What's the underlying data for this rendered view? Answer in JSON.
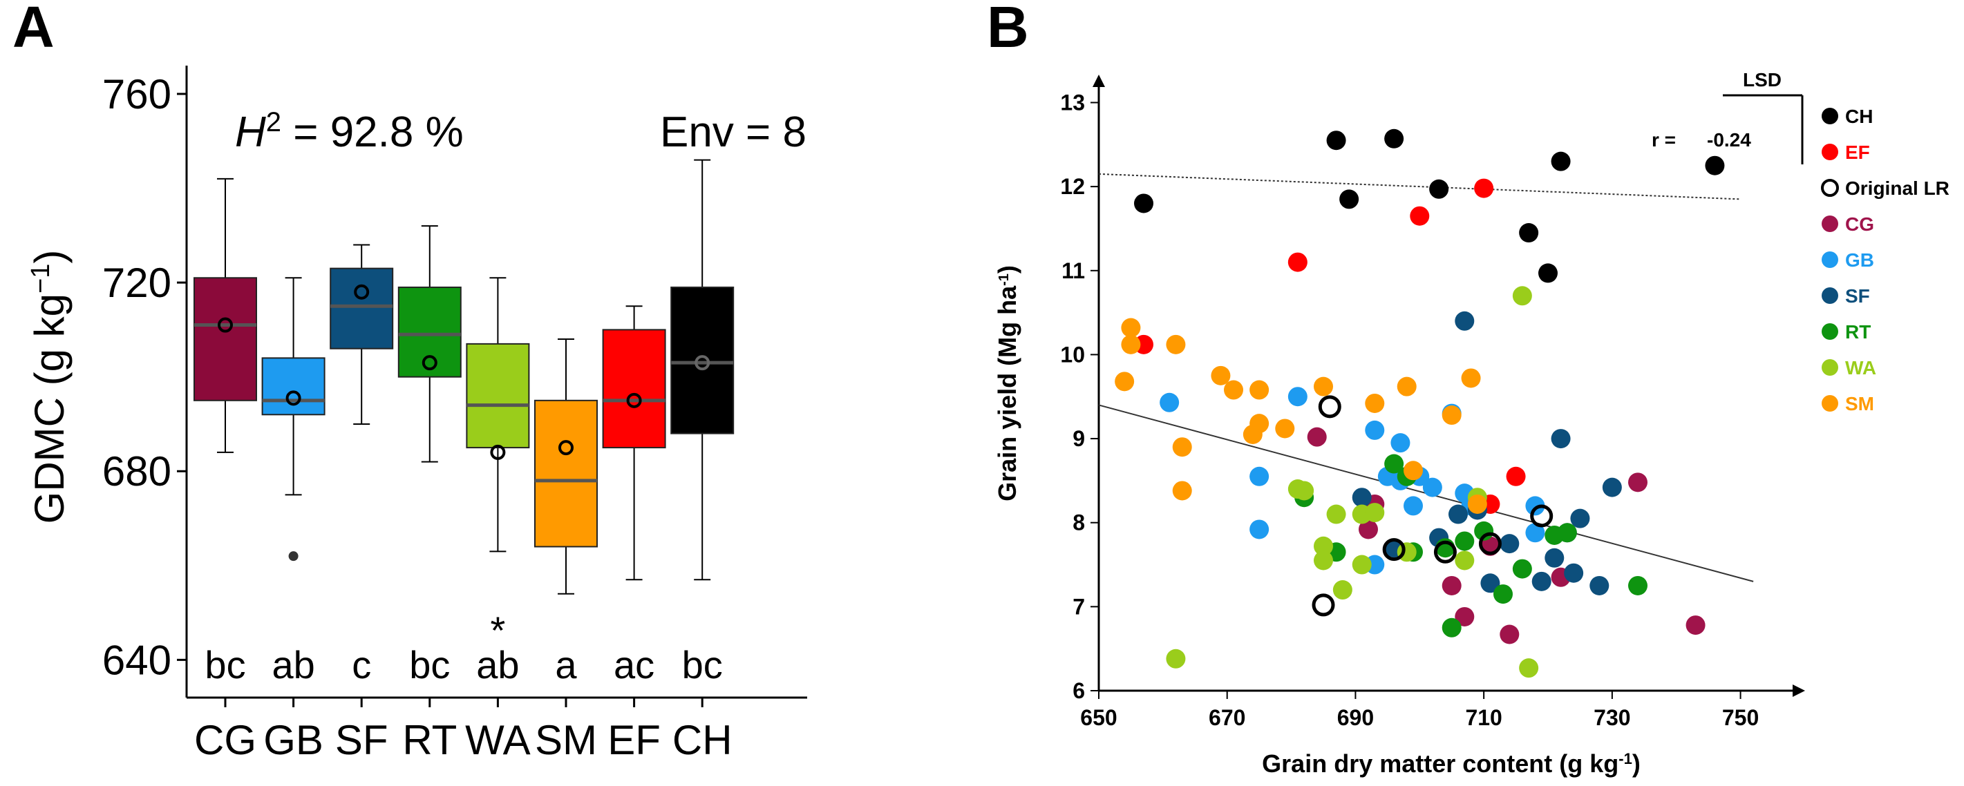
{
  "panels": {
    "a": "A",
    "b": "B"
  },
  "chart_data": [
    {
      "type": "box",
      "panel": "A",
      "ylabel_main": "GDMC (g kg",
      "ylabel_sup": "−1",
      "ylabel_end": ")",
      "ylim": [
        632,
        766
      ],
      "yticks": [
        640,
        680,
        720,
        760
      ],
      "annotation_h2": {
        "symbol": "H",
        "sup": "2",
        "text": " = 92.8 %"
      },
      "annotation_env": "Env = 8",
      "categories": [
        "CG",
        "GB",
        "SF",
        "RT",
        "WA",
        "SM",
        "EF",
        "CH"
      ],
      "letters": [
        "bc",
        "ab",
        "c",
        "bc",
        "ab",
        "a",
        "ac",
        "bc"
      ],
      "star": {
        "category": "WA",
        "text": "*"
      },
      "colors": [
        "#8B0A3A",
        "#1E9BF0",
        "#0D4F7C",
        "#0E9410",
        "#9ACD1B",
        "#FF9A00",
        "#FF0000",
        "#000000"
      ],
      "median_color": "#555555",
      "boxes": [
        {
          "whisker_low": 684,
          "q1": 695,
          "median": 711,
          "q3": 721,
          "whisker_high": 742,
          "mean": 711,
          "outliers": []
        },
        {
          "whisker_low": 675,
          "q1": 692,
          "median": 695,
          "q3": 704,
          "whisker_high": 721,
          "mean": 695.5,
          "outliers": [
            662
          ]
        },
        {
          "whisker_low": 690,
          "q1": 706,
          "median": 715,
          "q3": 723,
          "whisker_high": 728,
          "mean": 718,
          "outliers": []
        },
        {
          "whisker_low": 682,
          "q1": 700,
          "median": 709,
          "q3": 719,
          "whisker_high": 732,
          "mean": 703,
          "outliers": []
        },
        {
          "whisker_low": 663,
          "q1": 685,
          "median": 694,
          "q3": 707,
          "whisker_high": 721,
          "mean": 684,
          "outliers": []
        },
        {
          "whisker_low": 654,
          "q1": 664,
          "median": 678,
          "q3": 695,
          "whisker_high": 708,
          "mean": 685,
          "outliers": []
        },
        {
          "whisker_low": 657,
          "q1": 685,
          "median": 695,
          "q3": 710,
          "whisker_high": 715,
          "mean": 695,
          "outliers": []
        },
        {
          "whisker_low": 657,
          "q1": 688,
          "median": 703,
          "q3": 719,
          "whisker_high": 746,
          "mean": 703,
          "outliers": []
        }
      ]
    },
    {
      "type": "scatter",
      "panel": "B",
      "xlabel_main": "Grain dry matter content (g kg",
      "xlabel_sup": "-1",
      "xlabel_end": ")",
      "ylabel_main": "Grain yield (Mg ha",
      "ylabel_sup": "-1",
      "ylabel_end": ")",
      "xlim": [
        650,
        755
      ],
      "ylim": [
        6,
        13.3
      ],
      "xticks": [
        650,
        670,
        690,
        710,
        730,
        750
      ],
      "yticks": [
        6,
        7,
        8,
        9,
        10,
        11,
        12,
        13
      ],
      "lsd_label": "LSD",
      "r_label": "r =",
      "r_value": "-0.24",
      "legend": [
        {
          "name": "CH",
          "color": "#000000",
          "style": "filled"
        },
        {
          "name": "EF",
          "color": "#FF0000",
          "style": "filled"
        },
        {
          "name": "Original LR",
          "color": "#000000",
          "style": "ring"
        },
        {
          "name": "CG",
          "color": "#A0144B",
          "style": "filled"
        },
        {
          "name": "GB",
          "color": "#1E9BF0",
          "style": "filled"
        },
        {
          "name": "SF",
          "color": "#0D4F7C",
          "style": "filled"
        },
        {
          "name": "RT",
          "color": "#0E9410",
          "style": "filled"
        },
        {
          "name": "WA",
          "color": "#9ACD1B",
          "style": "filled"
        },
        {
          "name": "SM",
          "color": "#FF9A00",
          "style": "filled"
        }
      ],
      "lines": [
        {
          "name": "dotted",
          "x": [
            650,
            750
          ],
          "y": [
            12.15,
            11.85
          ],
          "style": "dotted"
        },
        {
          "name": "solid",
          "x": [
            650,
            752
          ],
          "y": [
            9.4,
            7.3
          ],
          "style": "solid"
        }
      ],
      "series": [
        {
          "name": "CH",
          "color": "#000000",
          "points": [
            [
              657,
              11.8
            ],
            [
              687,
              12.55
            ],
            [
              689,
              11.85
            ],
            [
              696,
              12.57
            ],
            [
              703,
              11.97
            ],
            [
              717,
              11.45
            ],
            [
              720,
              10.97
            ],
            [
              722,
              12.3
            ],
            [
              746,
              12.25
            ]
          ]
        },
        {
          "name": "EF",
          "color": "#FF0000",
          "points": [
            [
              657,
              10.12
            ],
            [
              681,
              11.1
            ],
            [
              700,
              11.65
            ],
            [
              710,
              11.98
            ],
            [
              711,
              8.22
            ],
            [
              715,
              8.55
            ]
          ]
        },
        {
          "name": "CG",
          "color": "#A0144B",
          "points": [
            [
              684,
              9.02
            ],
            [
              692,
              7.92
            ],
            [
              693,
              8.22
            ],
            [
              705,
              7.25
            ],
            [
              707,
              6.88
            ],
            [
              711,
              7.72
            ],
            [
              714,
              6.67
            ],
            [
              722,
              7.35
            ],
            [
              734,
              8.48
            ],
            [
              743,
              6.78
            ]
          ]
        },
        {
          "name": "GB",
          "color": "#1E9BF0",
          "points": [
            [
              661,
              9.43
            ],
            [
              675,
              8.55
            ],
            [
              675,
              7.92
            ],
            [
              681,
              9.5
            ],
            [
              693,
              7.5
            ],
            [
              693,
              9.1
            ],
            [
              695,
              8.55
            ],
            [
              697,
              8.95
            ],
            [
              697,
              8.5
            ],
            [
              699,
              8.2
            ],
            [
              700,
              8.55
            ],
            [
              702,
              8.42
            ],
            [
              705,
              9.3
            ],
            [
              707,
              8.35
            ],
            [
              708,
              8.2
            ],
            [
              718,
              7.88
            ],
            [
              718,
              8.2
            ]
          ]
        },
        {
          "name": "SF",
          "color": "#0D4F7C",
          "points": [
            [
              691,
              8.3
            ],
            [
              696,
              7.7
            ],
            [
              703,
              7.82
            ],
            [
              706,
              8.1
            ],
            [
              707,
              10.4
            ],
            [
              709,
              8.15
            ],
            [
              711,
              7.28
            ],
            [
              714,
              7.75
            ],
            [
              719,
              7.3
            ],
            [
              721,
              7.58
            ],
            [
              722,
              9.0
            ],
            [
              723,
              7.88
            ],
            [
              724,
              7.4
            ],
            [
              725,
              8.05
            ],
            [
              728,
              7.25
            ],
            [
              730,
              8.42
            ]
          ]
        },
        {
          "name": "RT",
          "color": "#0E9410",
          "points": [
            [
              682,
              8.3
            ],
            [
              687,
              7.65
            ],
            [
              696,
              8.7
            ],
            [
              698,
              8.55
            ],
            [
              699,
              7.65
            ],
            [
              704,
              7.7
            ],
            [
              705,
              6.75
            ],
            [
              707,
              7.78
            ],
            [
              710,
              7.9
            ],
            [
              713,
              7.15
            ],
            [
              716,
              7.45
            ],
            [
              721,
              7.85
            ],
            [
              723,
              7.88
            ],
            [
              734,
              7.25
            ]
          ]
        },
        {
          "name": "WA",
          "color": "#9ACD1B",
          "points": [
            [
              662,
              6.38
            ],
            [
              681,
              8.4
            ],
            [
              682,
              8.38
            ],
            [
              685,
              7.72
            ],
            [
              685,
              7.55
            ],
            [
              687,
              8.1
            ],
            [
              688,
              7.2
            ],
            [
              691,
              8.1
            ],
            [
              691,
              7.5
            ],
            [
              693,
              8.12
            ],
            [
              698,
              7.65
            ],
            [
              707,
              7.55
            ],
            [
              709,
              8.3
            ],
            [
              716,
              10.7
            ],
            [
              717,
              6.27
            ]
          ]
        },
        {
          "name": "SM",
          "color": "#FF9A00",
          "points": [
            [
              654,
              9.68
            ],
            [
              655,
              10.32
            ],
            [
              655,
              10.12
            ],
            [
              662,
              10.12
            ],
            [
              663,
              8.9
            ],
            [
              663,
              8.38
            ],
            [
              669,
              9.75
            ],
            [
              671,
              9.58
            ],
            [
              675,
              9.58
            ],
            [
              675,
              9.18
            ],
            [
              674,
              9.05
            ],
            [
              679,
              9.12
            ],
            [
              685,
              9.62
            ],
            [
              693,
              9.42
            ],
            [
              698,
              9.62
            ],
            [
              699,
              8.62
            ],
            [
              705,
              9.28
            ],
            [
              708,
              9.72
            ],
            [
              709,
              8.22
            ]
          ]
        },
        {
          "name": "Original LR",
          "color": "#000000",
          "style": "ring",
          "points": [
            [
              686,
              9.38
            ],
            [
              685,
              7.02
            ],
            [
              696,
              7.68
            ],
            [
              704,
              7.65
            ],
            [
              711,
              7.75
            ],
            [
              719,
              8.08
            ]
          ]
        }
      ]
    }
  ]
}
